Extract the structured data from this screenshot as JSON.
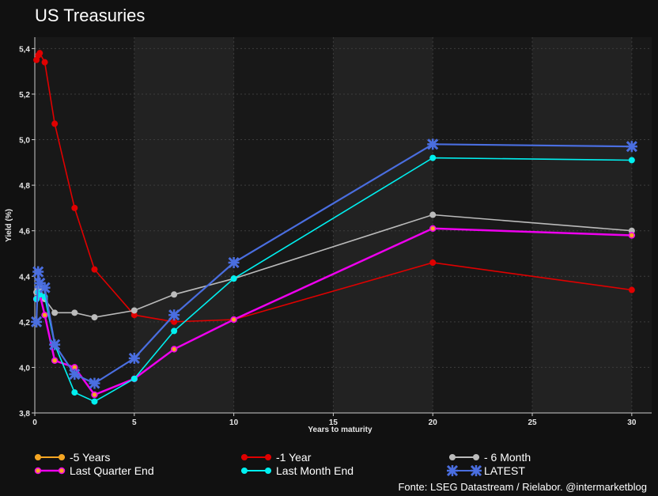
{
  "chart_data": {
    "type": "line",
    "title": "US Treasuries",
    "xlabel": "Years to maturity",
    "ylabel": "Yield (%)",
    "xlim": [
      0,
      31
    ],
    "ylim": [
      3.8,
      5.45
    ],
    "xticks": [
      0,
      5,
      10,
      15,
      20,
      25,
      30
    ],
    "yticks": [
      3.8,
      4.0,
      4.2,
      4.4,
      4.6,
      4.8,
      5.0,
      5.2,
      5.4
    ],
    "ytick_labels": [
      "3,8",
      "4,0",
      "4,2",
      "4,4",
      "4,6",
      "4,8",
      "5,0",
      "5,2",
      "5,4"
    ],
    "grid": true,
    "legend_position": "bottom",
    "series": [
      {
        "name": "-5 Years",
        "color": "#f5a623",
        "marker": "circle",
        "x": [],
        "y": []
      },
      {
        "name": "-1 Year",
        "color": "#e00000",
        "marker": "circle",
        "x": [
          0.083,
          0.167,
          0.25,
          0.5,
          1,
          2,
          3,
          5,
          7,
          10,
          20,
          30
        ],
        "y": [
          5.35,
          5.37,
          5.38,
          5.34,
          5.07,
          4.7,
          4.43,
          4.23,
          4.2,
          4.21,
          4.46,
          4.34
        ]
      },
      {
        "name": "- 6 Month",
        "color": "#bbbbbb",
        "marker": "circle",
        "x": [
          0.083,
          0.167,
          0.25,
          0.5,
          1,
          2,
          3,
          5,
          7,
          10,
          20,
          30
        ],
        "y": [
          4.33,
          4.34,
          4.35,
          4.3,
          4.24,
          4.24,
          4.22,
          4.25,
          4.32,
          4.39,
          4.67,
          4.6
        ]
      },
      {
        "name": "Last Quarter End",
        "color": "#ee00ee",
        "marker": "circle-orange",
        "x": [
          0.083,
          0.167,
          0.25,
          0.5,
          1,
          2,
          3,
          5,
          7,
          10,
          20,
          30
        ],
        "y": [
          4.3,
          4.33,
          4.32,
          4.23,
          4.03,
          4.0,
          3.88,
          3.95,
          4.08,
          4.21,
          4.61,
          4.58
        ]
      },
      {
        "name": "Last Month End",
        "color": "#00f0f0",
        "marker": "circle",
        "x": [
          0.083,
          0.167,
          0.25,
          0.5,
          1,
          2,
          3,
          5,
          7,
          10,
          20,
          30
        ],
        "y": [
          4.3,
          4.33,
          4.32,
          4.31,
          4.1,
          3.89,
          3.85,
          3.95,
          4.16,
          4.39,
          4.92,
          4.91
        ]
      },
      {
        "name": "LATEST",
        "color": "#4a6ee0",
        "marker": "star",
        "x": [
          0.083,
          0.167,
          0.25,
          0.5,
          1,
          2,
          3,
          5,
          7,
          10,
          20,
          30
        ],
        "y": [
          4.2,
          4.42,
          4.37,
          4.35,
          4.1,
          3.97,
          3.93,
          4.04,
          4.23,
          4.46,
          4.98,
          4.97
        ]
      }
    ]
  },
  "source": "Fonte: LSEG Datastream /  Rielabor. @intermarketblog"
}
